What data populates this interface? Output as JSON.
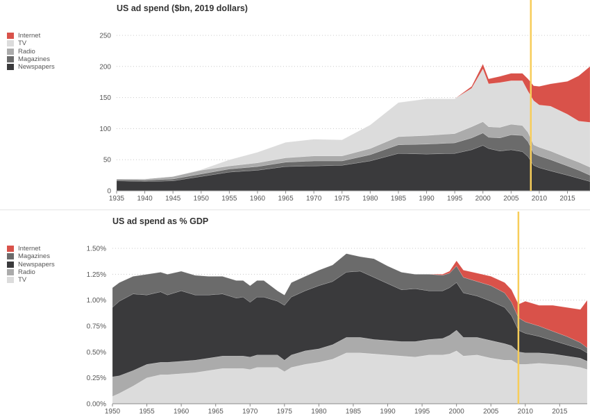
{
  "colors": {
    "Internet": "#d9524a",
    "TV": "#dcdcdc",
    "Radio": "#ababab",
    "Magazines": "#6b6b6b",
    "Newspapers": "#3a3a3c",
    "marker": "#f7cd5a",
    "grid": "#c8c8c8",
    "axis_text": "#555555"
  },
  "chart_data": [
    {
      "type": "area",
      "title": "US ad spend ($bn, 2019 dollars)",
      "xlabel": "",
      "ylabel": "",
      "xlim": [
        1935,
        2019
      ],
      "ylim": [
        0,
        250
      ],
      "x_ticks": [
        1935,
        1940,
        1945,
        1950,
        1955,
        1960,
        1965,
        1970,
        1975,
        1980,
        1985,
        1990,
        1995,
        2000,
        2005,
        2010,
        2015
      ],
      "y_ticks": [
        0,
        50,
        100,
        150,
        200,
        250
      ],
      "y_tick_labels": [
        "0",
        "50",
        "100",
        "150",
        "200",
        "250"
      ],
      "grid": "horizontal dotted",
      "legend": "left",
      "legend_order": [
        "Internet",
        "TV",
        "Radio",
        "Magazines",
        "Newspapers"
      ],
      "stack_order": [
        "Newspapers",
        "Magazines",
        "Radio",
        "TV",
        "Internet"
      ],
      "marker_year": 2008.5,
      "x": [
        1935,
        1940,
        1945,
        1950,
        1955,
        1960,
        1965,
        1970,
        1975,
        1980,
        1985,
        1990,
        1995,
        1998,
        2000,
        2001,
        2003,
        2005,
        2007,
        2008,
        2009,
        2010,
        2012,
        2015,
        2017,
        2019
      ],
      "series": [
        {
          "name": "Newspapers",
          "values": [
            16,
            15,
            16,
            23,
            30,
            33,
            39,
            40,
            41,
            48,
            60,
            59,
            60,
            66,
            73,
            68,
            64,
            66,
            63,
            55,
            41,
            37,
            32,
            25,
            20,
            15
          ]
        },
        {
          "name": "Magazines",
          "values": [
            2,
            2,
            3,
            4,
            5,
            6,
            7,
            8,
            7,
            10,
            14,
            16,
            17,
            19,
            20,
            18,
            21,
            24,
            26,
            24,
            19,
            19,
            18,
            15,
            13,
            10
          ]
        },
        {
          "name": "Radio",
          "values": [
            1,
            2,
            4,
            6,
            5,
            6,
            7,
            8,
            8,
            10,
            13,
            14,
            15,
            18,
            18,
            17,
            17,
            17,
            16,
            15,
            14,
            14,
            14,
            13,
            13,
            13
          ]
        },
        {
          "name": "TV",
          "values": [
            0,
            0,
            0,
            1,
            10,
            17,
            25,
            27,
            26,
            38,
            55,
            59,
            56,
            62,
            85,
            69,
            72,
            70,
            72,
            66,
            71,
            68,
            72,
            70,
            66,
            72
          ]
        },
        {
          "name": "Internet",
          "values": [
            0,
            0,
            0,
            0,
            0,
            0,
            0,
            0,
            0,
            0,
            0,
            0,
            0,
            3,
            8,
            8,
            10,
            12,
            12,
            20,
            24,
            30,
            36,
            53,
            73,
            90
          ]
        }
      ]
    },
    {
      "type": "area",
      "title": "US ad spend as % GDP",
      "xlabel": "",
      "ylabel": "",
      "xlim": [
        1950,
        2019
      ],
      "ylim": [
        0,
        1.5
      ],
      "x_ticks": [
        1950,
        1955,
        1960,
        1965,
        1970,
        1975,
        1980,
        1985,
        1990,
        1995,
        2000,
        2005,
        2010,
        2015
      ],
      "y_ticks": [
        0,
        0.25,
        0.5,
        0.75,
        1.0,
        1.25,
        1.5
      ],
      "y_tick_labels": [
        "0.00%",
        "0.25%",
        "0.50%",
        "0.75%",
        "1.00%",
        "1.25%",
        "1.50%"
      ],
      "grid": "horizontal dotted",
      "legend": "left",
      "legend_order": [
        "Internet",
        "Magazines",
        "Newspapers",
        "Radio",
        "TV"
      ],
      "stack_order": [
        "TV",
        "Radio",
        "Newspapers",
        "Magazines",
        "Internet"
      ],
      "marker_year": 2009,
      "x": [
        1950,
        1951,
        1953,
        1955,
        1957,
        1958,
        1960,
        1962,
        1964,
        1966,
        1968,
        1969,
        1970,
        1971,
        1972,
        1974,
        1975,
        1976,
        1978,
        1980,
        1982,
        1984,
        1986,
        1988,
        1990,
        1992,
        1994,
        1996,
        1998,
        1999,
        2000,
        2001,
        2003,
        2005,
        2007,
        2008,
        2009,
        2010,
        2012,
        2014,
        2016,
        2018,
        2019
      ],
      "series": [
        {
          "name": "TV",
          "values": [
            0.07,
            0.1,
            0.17,
            0.25,
            0.28,
            0.28,
            0.29,
            0.3,
            0.32,
            0.34,
            0.34,
            0.34,
            0.33,
            0.35,
            0.35,
            0.35,
            0.31,
            0.35,
            0.38,
            0.4,
            0.43,
            0.49,
            0.49,
            0.48,
            0.47,
            0.46,
            0.45,
            0.47,
            0.47,
            0.48,
            0.51,
            0.46,
            0.47,
            0.44,
            0.42,
            0.42,
            0.38,
            0.38,
            0.39,
            0.38,
            0.37,
            0.35,
            0.33
          ]
        },
        {
          "name": "Radio",
          "values": [
            0.19,
            0.17,
            0.15,
            0.13,
            0.12,
            0.12,
            0.12,
            0.12,
            0.12,
            0.12,
            0.12,
            0.12,
            0.12,
            0.12,
            0.12,
            0.12,
            0.11,
            0.12,
            0.13,
            0.13,
            0.14,
            0.15,
            0.15,
            0.14,
            0.14,
            0.14,
            0.15,
            0.15,
            0.16,
            0.18,
            0.2,
            0.18,
            0.17,
            0.17,
            0.16,
            0.14,
            0.12,
            0.11,
            0.1,
            0.1,
            0.09,
            0.09,
            0.08
          ]
        },
        {
          "name": "Newspapers",
          "values": [
            0.67,
            0.72,
            0.74,
            0.67,
            0.68,
            0.65,
            0.68,
            0.63,
            0.61,
            0.6,
            0.56,
            0.57,
            0.53,
            0.56,
            0.56,
            0.52,
            0.53,
            0.56,
            0.58,
            0.61,
            0.61,
            0.63,
            0.64,
            0.6,
            0.55,
            0.5,
            0.51,
            0.47,
            0.46,
            0.46,
            0.46,
            0.43,
            0.4,
            0.38,
            0.35,
            0.29,
            0.21,
            0.19,
            0.16,
            0.13,
            0.11,
            0.09,
            0.08
          ]
        },
        {
          "name": "Magazines",
          "values": [
            0.19,
            0.18,
            0.17,
            0.2,
            0.19,
            0.2,
            0.19,
            0.19,
            0.18,
            0.17,
            0.17,
            0.16,
            0.16,
            0.16,
            0.16,
            0.1,
            0.1,
            0.14,
            0.14,
            0.15,
            0.16,
            0.18,
            0.14,
            0.18,
            0.17,
            0.17,
            0.14,
            0.16,
            0.15,
            0.14,
            0.16,
            0.15,
            0.14,
            0.15,
            0.14,
            0.13,
            0.12,
            0.11,
            0.1,
            0.09,
            0.08,
            0.06,
            0.05
          ]
        },
        {
          "name": "Internet",
          "values": [
            0,
            0,
            0,
            0,
            0,
            0,
            0,
            0,
            0,
            0,
            0,
            0,
            0,
            0,
            0,
            0,
            0,
            0,
            0,
            0,
            0,
            0,
            0,
            0,
            0,
            0,
            0,
            0,
            0.01,
            0.02,
            0.05,
            0.07,
            0.08,
            0.09,
            0.1,
            0.12,
            0.13,
            0.2,
            0.2,
            0.25,
            0.28,
            0.32,
            0.46
          ]
        }
      ]
    }
  ]
}
